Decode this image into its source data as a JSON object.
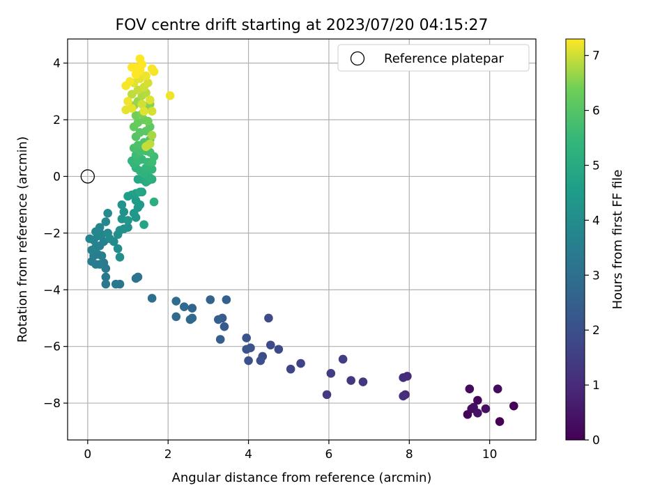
{
  "chart_data": {
    "type": "scatter",
    "title": "FOV centre drift starting at 2023/07/20 04:15:27",
    "xlabel": "Angular distance from reference (arcmin)",
    "ylabel": "Rotation from reference (arcmin)",
    "xlim": [
      -0.5,
      11.15
    ],
    "ylim": [
      -9.3,
      4.85
    ],
    "xticks": [
      0,
      2,
      4,
      6,
      8,
      10
    ],
    "yticks": [
      -8,
      -6,
      -4,
      -2,
      0,
      2,
      4
    ],
    "grid": true,
    "legend": {
      "placement": "top-right",
      "entries": [
        {
          "label": "Reference platepar",
          "marker": "open-circle"
        }
      ]
    },
    "reference_point": {
      "x": 0,
      "y": 0
    },
    "colorbar": {
      "label": "Hours from first FF file",
      "range": [
        0,
        7.3
      ],
      "ticks": [
        0,
        1,
        2,
        3,
        4,
        5,
        6,
        7
      ],
      "colormap": "viridis"
    },
    "points": [
      [
        9.5,
        -7.5,
        0.2
      ],
      [
        10.2,
        -7.5,
        0.25
      ],
      [
        9.6,
        -8.15,
        0.3
      ],
      [
        9.7,
        -7.9,
        0.15
      ],
      [
        9.45,
        -8.4,
        0.1
      ],
      [
        9.9,
        -8.2,
        0.35
      ],
      [
        10.6,
        -8.1,
        0.05
      ],
      [
        10.25,
        -8.65,
        0.0
      ],
      [
        9.7,
        -8.35,
        0.4
      ],
      [
        9.55,
        -8.2,
        0.2
      ],
      [
        7.95,
        -7.05,
        1.0
      ],
      [
        7.85,
        -7.1,
        1.05
      ],
      [
        7.9,
        -7.7,
        0.95
      ],
      [
        7.85,
        -7.75,
        1.1
      ],
      [
        6.85,
        -7.25,
        1.3
      ],
      [
        6.55,
        -7.2,
        1.35
      ],
      [
        6.35,
        -6.45,
        1.5
      ],
      [
        6.05,
        -6.95,
        1.45
      ],
      [
        5.95,
        -7.7,
        1.4
      ],
      [
        5.3,
        -6.6,
        1.65
      ],
      [
        5.05,
        -6.8,
        1.7
      ],
      [
        4.75,
        -6.1,
        1.8
      ],
      [
        4.55,
        -5.95,
        1.85
      ],
      [
        4.5,
        -5.0,
        1.9
      ],
      [
        4.35,
        -6.35,
        1.95
      ],
      [
        4.3,
        -6.5,
        2.0
      ],
      [
        4.0,
        -6.5,
        2.05
      ],
      [
        4.05,
        -6.05,
        2.1
      ],
      [
        3.95,
        -5.7,
        2.1
      ],
      [
        3.95,
        -6.1,
        2.15
      ],
      [
        3.4,
        -5.3,
        2.3
      ],
      [
        3.35,
        -5.0,
        2.35
      ],
      [
        3.3,
        -5.75,
        2.4
      ],
      [
        3.25,
        -5.05,
        2.45
      ],
      [
        3.45,
        -4.35,
        2.5
      ],
      [
        3.05,
        -4.35,
        2.55
      ],
      [
        2.6,
        -4.65,
        2.65
      ],
      [
        2.6,
        -5.0,
        2.7
      ],
      [
        2.55,
        -5.05,
        2.75
      ],
      [
        2.4,
        -4.6,
        2.8
      ],
      [
        2.2,
        -4.95,
        2.85
      ],
      [
        2.2,
        -4.4,
        2.9
      ],
      [
        1.6,
        -4.3,
        3.0
      ],
      [
        1.25,
        -3.55,
        3.1
      ],
      [
        1.2,
        -3.6,
        3.15
      ],
      [
        0.8,
        -3.8,
        3.2
      ],
      [
        0.7,
        -3.8,
        3.25
      ],
      [
        0.45,
        -3.8,
        3.3
      ],
      [
        0.45,
        -3.55,
        3.3
      ],
      [
        0.45,
        -3.25,
        3.35
      ],
      [
        0.4,
        -3.05,
        3.35
      ],
      [
        0.3,
        -3.1,
        3.4
      ],
      [
        0.2,
        -3.1,
        3.45
      ],
      [
        0.1,
        -3.0,
        3.5
      ],
      [
        0.15,
        -2.8,
        3.5
      ],
      [
        0.25,
        -2.75,
        3.55
      ],
      [
        0.35,
        -2.8,
        3.55
      ],
      [
        0.1,
        -2.6,
        3.6
      ],
      [
        0.2,
        -2.5,
        3.6
      ],
      [
        0.3,
        -2.45,
        3.65
      ],
      [
        0.4,
        -2.3,
        3.65
      ],
      [
        0.15,
        -2.25,
        3.7
      ],
      [
        0.05,
        -2.2,
        3.7
      ],
      [
        0.25,
        -2.1,
        3.75
      ],
      [
        0.35,
        -2.05,
        3.75
      ],
      [
        0.2,
        -1.95,
        3.8
      ],
      [
        0.3,
        -1.8,
        3.8
      ],
      [
        0.45,
        -1.6,
        3.85
      ],
      [
        0.5,
        -1.3,
        3.9
      ],
      [
        0.5,
        -2.0,
        3.9
      ],
      [
        0.55,
        -2.2,
        3.95
      ],
      [
        0.65,
        -2.3,
        3.95
      ],
      [
        0.75,
        -2.55,
        4.0
      ],
      [
        0.8,
        -2.85,
        4.0
      ],
      [
        0.75,
        -2.05,
        4.05
      ],
      [
        0.8,
        -1.9,
        4.1
      ],
      [
        0.9,
        -1.85,
        4.1
      ],
      [
        1.0,
        -1.8,
        4.15
      ],
      [
        0.85,
        -1.5,
        4.2
      ],
      [
        0.9,
        -1.25,
        4.2
      ],
      [
        0.85,
        -1.0,
        4.25
      ],
      [
        1.0,
        -1.55,
        4.3
      ],
      [
        1.2,
        -1.45,
        4.35
      ],
      [
        1.15,
        -1.3,
        4.35
      ],
      [
        1.25,
        -1.1,
        4.4
      ],
      [
        1.3,
        -1.0,
        4.45
      ],
      [
        1.2,
        -0.85,
        4.5
      ],
      [
        1.0,
        -0.7,
        4.55
      ],
      [
        1.1,
        -0.65,
        4.6
      ],
      [
        1.2,
        -0.6,
        4.65
      ],
      [
        1.35,
        -0.55,
        4.7
      ],
      [
        1.4,
        -1.7,
        4.75
      ],
      [
        1.3,
        -0.55,
        4.8
      ],
      [
        1.25,
        -0.1,
        4.9
      ],
      [
        1.35,
        -0.1,
        4.95
      ],
      [
        1.45,
        -0.2,
        5.0
      ],
      [
        1.5,
        -0.15,
        5.05
      ],
      [
        1.6,
        -0.1,
        5.1
      ],
      [
        1.65,
        -0.9,
        5.15
      ],
      [
        1.55,
        -0.05,
        5.2
      ],
      [
        1.4,
        0.1,
        5.25
      ],
      [
        1.3,
        0.2,
        5.3
      ],
      [
        1.45,
        0.3,
        5.35
      ],
      [
        1.6,
        0.25,
        5.4
      ],
      [
        1.15,
        0.45,
        5.45
      ],
      [
        1.25,
        0.55,
        5.5
      ],
      [
        1.35,
        0.6,
        5.5
      ],
      [
        1.5,
        0.5,
        5.55
      ],
      [
        1.2,
        0.75,
        5.6
      ],
      [
        1.3,
        0.85,
        5.65
      ],
      [
        1.45,
        0.9,
        5.7
      ],
      [
        1.55,
        0.85,
        5.75
      ],
      [
        1.15,
        1.0,
        5.8
      ],
      [
        1.25,
        1.1,
        5.85
      ],
      [
        1.4,
        1.2,
        5.9
      ],
      [
        1.55,
        1.3,
        5.95
      ],
      [
        1.2,
        1.4,
        6.0
      ],
      [
        1.3,
        1.55,
        6.05
      ],
      [
        1.45,
        1.6,
        6.1
      ],
      [
        1.55,
        1.75,
        6.15
      ],
      [
        1.15,
        1.75,
        6.2
      ],
      [
        1.25,
        1.9,
        6.25
      ],
      [
        1.4,
        2.0,
        6.3
      ],
      [
        1.5,
        1.95,
        6.35
      ],
      [
        1.2,
        2.15,
        6.4
      ],
      [
        1.35,
        2.2,
        6.45
      ],
      [
        1.45,
        2.4,
        6.5
      ],
      [
        1.55,
        2.55,
        6.55
      ],
      [
        1.15,
        2.5,
        6.6
      ],
      [
        1.25,
        2.65,
        6.65
      ],
      [
        1.5,
        1.1,
        6.7
      ],
      [
        1.6,
        1.45,
        6.75
      ],
      [
        1.35,
        2.85,
        6.8
      ],
      [
        1.45,
        2.95,
        6.85
      ],
      [
        1.1,
        2.9,
        6.9
      ],
      [
        1.25,
        3.05,
        6.95
      ],
      [
        1.4,
        3.15,
        7.0
      ],
      [
        1.5,
        3.3,
        7.05
      ],
      [
        1.15,
        3.3,
        7.1
      ],
      [
        1.3,
        3.45,
        7.15
      ],
      [
        1.45,
        3.55,
        7.2
      ],
      [
        0.95,
        3.2,
        7.25
      ],
      [
        1.05,
        3.35,
        7.25
      ],
      [
        1.2,
        3.6,
        7.3
      ],
      [
        1.3,
        3.75,
        7.3
      ],
      [
        1.35,
        3.95,
        7.3
      ],
      [
        1.3,
        4.15,
        7.3
      ],
      [
        1.2,
        3.85,
        7.3
      ],
      [
        1.1,
        3.85,
        7.3
      ],
      [
        1.6,
        3.8,
        7.25
      ],
      [
        1.65,
        3.7,
        7.25
      ],
      [
        2.05,
        2.85,
        7.2
      ],
      [
        1.0,
        2.65,
        7.2
      ],
      [
        0.95,
        2.35,
        7.15
      ],
      [
        1.1,
        2.4,
        7.15
      ],
      [
        1.4,
        2.3,
        7.1
      ],
      [
        1.55,
        2.7,
        7.1
      ],
      [
        1.6,
        2.3,
        7.05
      ],
      [
        1.35,
        2.55,
        7.0
      ],
      [
        1.45,
        1.05,
        6.95
      ],
      [
        1.55,
        1.15,
        6.9
      ],
      [
        1.6,
        0.5,
        5.6
      ],
      [
        1.65,
        0.7,
        5.65
      ],
      [
        1.3,
        0.9,
        5.75
      ],
      [
        1.2,
        0.3,
        5.3
      ],
      [
        1.1,
        0.55,
        5.4
      ],
      [
        1.45,
        0.05,
        5.15
      ]
    ]
  }
}
